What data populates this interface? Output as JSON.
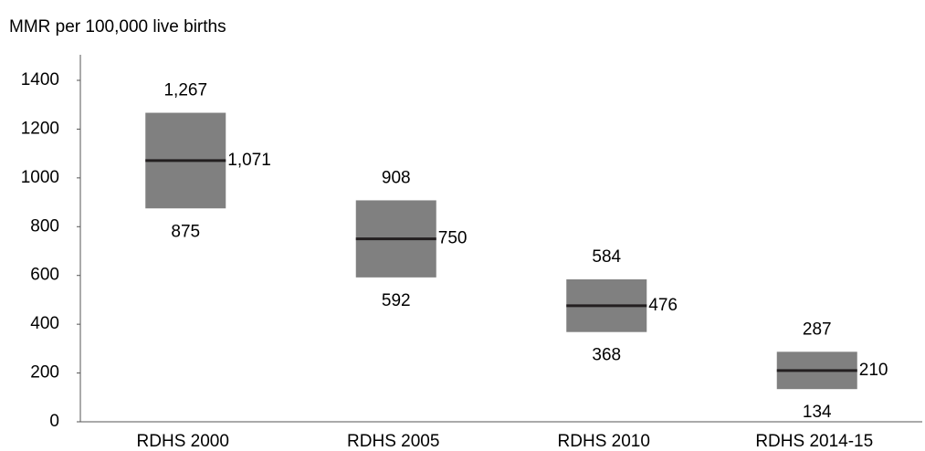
{
  "chart_data": {
    "type": "range",
    "y_label": "MMR per 100,000 live births",
    "categories": [
      "RDHS 2000",
      "RDHS 2005",
      "RDHS 2010",
      "RDHS 2014-15"
    ],
    "values": [
      1071,
      750,
      476,
      210
    ],
    "value_labels": [
      "1,071",
      "750",
      "476",
      "210"
    ],
    "low": [
      875,
      592,
      368,
      134
    ],
    "low_labels": [
      "875",
      "592",
      "368",
      "134"
    ],
    "high": [
      1267,
      908,
      584,
      287
    ],
    "high_labels": [
      "1,267",
      "908",
      "584",
      "287"
    ],
    "color": "#808080",
    "line_color": "#231f20",
    "ylim": [
      0,
      1400
    ],
    "yticks": [
      0,
      200,
      400,
      600,
      800,
      1000,
      1200,
      1400
    ]
  }
}
